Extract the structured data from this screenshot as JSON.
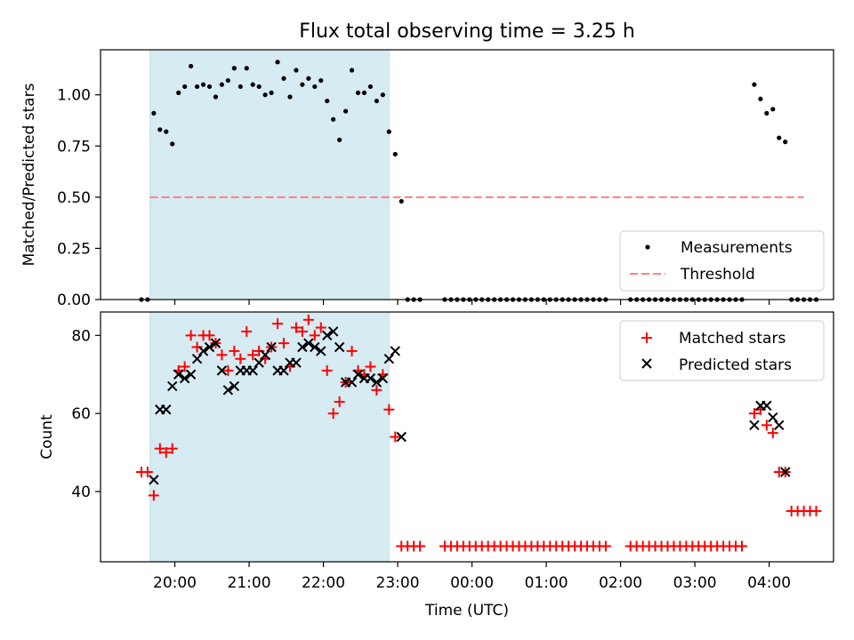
{
  "figure": {
    "title": "Flux total observing time = 3.25 h",
    "xlabel": "Time (UTC)"
  },
  "chart_data": [
    {
      "type": "scatter",
      "ylabel": "Matched/Predicted stars",
      "ylim": [
        0,
        1.22
      ],
      "xlim": [
        "19:00",
        "04:52"
      ],
      "yticks": [
        0.0,
        0.25,
        0.5,
        0.75,
        1.0
      ],
      "ytick_labels": [
        "0.00",
        "0.25",
        "0.50",
        "0.75",
        "1.00"
      ],
      "shaded_span": [
        "19:40",
        "22:53"
      ],
      "legend": {
        "placement": "lower-right",
        "entries": [
          "Measurements",
          "Threshold"
        ]
      },
      "threshold": {
        "name": "Threshold",
        "value": 0.5,
        "x_range": [
          "19:40",
          "04:28"
        ],
        "color": "#ff7f7f",
        "style": "dashed"
      },
      "series": [
        {
          "name": "Measurements",
          "marker": "dot",
          "color": "#000000",
          "points": [
            [
              "19:33",
              0.0
            ],
            [
              "19:38",
              0.0
            ],
            [
              "19:43",
              0.91
            ],
            [
              "19:48",
              0.83
            ],
            [
              "19:53",
              0.82
            ],
            [
              "19:58",
              0.76
            ],
            [
              "20:03",
              1.01
            ],
            [
              "20:08",
              1.04
            ],
            [
              "20:13",
              1.14
            ],
            [
              "20:18",
              1.04
            ],
            [
              "20:23",
              1.05
            ],
            [
              "20:28",
              1.04
            ],
            [
              "20:33",
              0.99
            ],
            [
              "20:38",
              1.05
            ],
            [
              "20:43",
              1.07
            ],
            [
              "20:48",
              1.13
            ],
            [
              "20:53",
              1.04
            ],
            [
              "20:58",
              1.13
            ],
            [
              "21:03",
              1.05
            ],
            [
              "21:08",
              1.04
            ],
            [
              "21:13",
              1.0
            ],
            [
              "21:18",
              1.01
            ],
            [
              "21:23",
              1.16
            ],
            [
              "21:28",
              1.08
            ],
            [
              "21:33",
              0.99
            ],
            [
              "21:38",
              1.12
            ],
            [
              "21:43",
              1.05
            ],
            [
              "21:48",
              1.08
            ],
            [
              "21:53",
              1.04
            ],
            [
              "21:58",
              1.07
            ],
            [
              "22:03",
              0.97
            ],
            [
              "22:08",
              0.88
            ],
            [
              "22:13",
              0.78
            ],
            [
              "22:18",
              0.92
            ],
            [
              "22:23",
              1.12
            ],
            [
              "22:28",
              1.01
            ],
            [
              "22:33",
              1.01
            ],
            [
              "22:38",
              1.04
            ],
            [
              "22:43",
              0.97
            ],
            [
              "22:48",
              1.0
            ],
            [
              "22:53",
              0.82
            ],
            [
              "22:58",
              0.71
            ],
            [
              "23:03",
              0.48
            ],
            [
              "23:08",
              0.0
            ],
            [
              "23:13",
              0.0
            ],
            [
              "23:18",
              0.0
            ],
            [
              "23:38",
              0.0
            ],
            [
              "23:43",
              0.0
            ],
            [
              "23:48",
              0.0
            ],
            [
              "23:53",
              0.0
            ],
            [
              "23:58",
              0.0
            ],
            [
              "00:03",
              0.0
            ],
            [
              "00:08",
              0.0
            ],
            [
              "00:13",
              0.0
            ],
            [
              "00:18",
              0.0
            ],
            [
              "00:23",
              0.0
            ],
            [
              "00:28",
              0.0
            ],
            [
              "00:33",
              0.0
            ],
            [
              "00:38",
              0.0
            ],
            [
              "00:43",
              0.0
            ],
            [
              "00:48",
              0.0
            ],
            [
              "00:53",
              0.0
            ],
            [
              "00:58",
              0.0
            ],
            [
              "01:03",
              0.0
            ],
            [
              "01:08",
              0.0
            ],
            [
              "01:13",
              0.0
            ],
            [
              "01:18",
              0.0
            ],
            [
              "01:23",
              0.0
            ],
            [
              "01:28",
              0.0
            ],
            [
              "01:33",
              0.0
            ],
            [
              "01:38",
              0.0
            ],
            [
              "01:43",
              0.0
            ],
            [
              "01:48",
              0.0
            ],
            [
              "02:08",
              0.0
            ],
            [
              "02:13",
              0.0
            ],
            [
              "02:18",
              0.0
            ],
            [
              "02:23",
              0.0
            ],
            [
              "02:28",
              0.0
            ],
            [
              "02:33",
              0.0
            ],
            [
              "02:38",
              0.0
            ],
            [
              "02:43",
              0.0
            ],
            [
              "02:48",
              0.0
            ],
            [
              "02:53",
              0.0
            ],
            [
              "02:58",
              0.0
            ],
            [
              "03:03",
              0.0
            ],
            [
              "03:08",
              0.0
            ],
            [
              "03:13",
              0.0
            ],
            [
              "03:18",
              0.0
            ],
            [
              "03:23",
              0.0
            ],
            [
              "03:28",
              0.0
            ],
            [
              "03:33",
              0.0
            ],
            [
              "03:38",
              0.0
            ],
            [
              "03:48",
              1.05
            ],
            [
              "03:53",
              0.98
            ],
            [
              "03:58",
              0.91
            ],
            [
              "04:03",
              0.93
            ],
            [
              "04:08",
              0.79
            ],
            [
              "04:13",
              0.77
            ],
            [
              "04:18",
              0.0
            ],
            [
              "04:23",
              0.0
            ],
            [
              "04:28",
              0.0
            ],
            [
              "04:33",
              0.0
            ],
            [
              "04:38",
              0.0
            ]
          ]
        }
      ]
    },
    {
      "type": "scatter",
      "ylabel": "Count",
      "xlabel": "Time (UTC)",
      "xlim": [
        "19:00",
        "04:52"
      ],
      "ylim": [
        22,
        86
      ],
      "yticks": [
        40,
        60,
        80
      ],
      "xticks": [
        "20:00",
        "21:00",
        "22:00",
        "23:00",
        "00:00",
        "01:00",
        "02:00",
        "03:00",
        "04:00"
      ],
      "shaded_span": [
        "19:40",
        "22:53"
      ],
      "legend": {
        "placement": "top-right",
        "entries": [
          "Matched stars",
          "Predicted stars"
        ]
      },
      "series": [
        {
          "name": "Matched stars",
          "marker": "plus",
          "color": "#ff0000",
          "points": [
            [
              "19:33",
              45
            ],
            [
              "19:38",
              45
            ],
            [
              "19:43",
              39
            ],
            [
              "19:48",
              51
            ],
            [
              "19:53",
              50
            ],
            [
              "19:58",
              51
            ],
            [
              "20:03",
              71
            ],
            [
              "20:08",
              72
            ],
            [
              "20:13",
              80
            ],
            [
              "20:18",
              77
            ],
            [
              "20:23",
              80
            ],
            [
              "20:28",
              80
            ],
            [
              "20:33",
              78
            ],
            [
              "20:38",
              75
            ],
            [
              "20:43",
              71
            ],
            [
              "20:48",
              76
            ],
            [
              "20:53",
              74
            ],
            [
              "20:58",
              81
            ],
            [
              "21:03",
              75
            ],
            [
              "21:08",
              76
            ],
            [
              "21:13",
              74
            ],
            [
              "21:18",
              77
            ],
            [
              "21:23",
              83
            ],
            [
              "21:28",
              78
            ],
            [
              "21:33",
              72
            ],
            [
              "21:38",
              82
            ],
            [
              "21:43",
              81
            ],
            [
              "21:48",
              84
            ],
            [
              "21:53",
              80
            ],
            [
              "21:58",
              82
            ],
            [
              "22:03",
              71
            ],
            [
              "22:08",
              60
            ],
            [
              "22:13",
              63
            ],
            [
              "22:18",
              68
            ],
            [
              "22:23",
              76
            ],
            [
              "22:28",
              71
            ],
            [
              "22:33",
              70
            ],
            [
              "22:38",
              72
            ],
            [
              "22:43",
              66
            ],
            [
              "22:48",
              70
            ],
            [
              "22:53",
              61
            ],
            [
              "22:58",
              54
            ],
            [
              "23:03",
              26
            ],
            [
              "23:08",
              26
            ],
            [
              "23:13",
              26
            ],
            [
              "23:18",
              26
            ],
            [
              "23:38",
              26
            ],
            [
              "23:43",
              26
            ],
            [
              "23:48",
              26
            ],
            [
              "23:53",
              26
            ],
            [
              "23:58",
              26
            ],
            [
              "00:03",
              26
            ],
            [
              "00:08",
              26
            ],
            [
              "00:13",
              26
            ],
            [
              "00:18",
              26
            ],
            [
              "00:23",
              26
            ],
            [
              "00:28",
              26
            ],
            [
              "00:33",
              26
            ],
            [
              "00:38",
              26
            ],
            [
              "00:43",
              26
            ],
            [
              "00:48",
              26
            ],
            [
              "00:53",
              26
            ],
            [
              "00:58",
              26
            ],
            [
              "01:03",
              26
            ],
            [
              "01:08",
              26
            ],
            [
              "01:13",
              26
            ],
            [
              "01:18",
              26
            ],
            [
              "01:23",
              26
            ],
            [
              "01:28",
              26
            ],
            [
              "01:33",
              26
            ],
            [
              "01:38",
              26
            ],
            [
              "01:43",
              26
            ],
            [
              "01:48",
              26
            ],
            [
              "02:08",
              26
            ],
            [
              "02:13",
              26
            ],
            [
              "02:18",
              26
            ],
            [
              "02:23",
              26
            ],
            [
              "02:28",
              26
            ],
            [
              "02:33",
              26
            ],
            [
              "02:38",
              26
            ],
            [
              "02:43",
              26
            ],
            [
              "02:48",
              26
            ],
            [
              "02:53",
              26
            ],
            [
              "02:58",
              26
            ],
            [
              "03:03",
              26
            ],
            [
              "03:08",
              26
            ],
            [
              "03:13",
              26
            ],
            [
              "03:18",
              26
            ],
            [
              "03:23",
              26
            ],
            [
              "03:28",
              26
            ],
            [
              "03:33",
              26
            ],
            [
              "03:38",
              26
            ],
            [
              "03:48",
              60
            ],
            [
              "03:53",
              61
            ],
            [
              "03:58",
              57
            ],
            [
              "04:03",
              55
            ],
            [
              "04:08",
              45
            ],
            [
              "04:13",
              45
            ],
            [
              "04:18",
              35
            ],
            [
              "04:23",
              35
            ],
            [
              "04:28",
              35
            ],
            [
              "04:33",
              35
            ],
            [
              "04:38",
              35
            ]
          ]
        },
        {
          "name": "Predicted stars",
          "marker": "x",
          "color": "#000000",
          "points": [
            [
              "19:43",
              43
            ],
            [
              "19:48",
              61
            ],
            [
              "19:53",
              61
            ],
            [
              "19:58",
              67
            ],
            [
              "20:03",
              70
            ],
            [
              "20:08",
              69
            ],
            [
              "20:13",
              70
            ],
            [
              "20:18",
              74
            ],
            [
              "20:23",
              76
            ],
            [
              "20:28",
              77
            ],
            [
              "20:33",
              78
            ],
            [
              "20:38",
              71
            ],
            [
              "20:43",
              66
            ],
            [
              "20:48",
              67
            ],
            [
              "20:53",
              71
            ],
            [
              "20:58",
              71
            ],
            [
              "21:03",
              71
            ],
            [
              "21:08",
              73
            ],
            [
              "21:13",
              75
            ],
            [
              "21:18",
              77
            ],
            [
              "21:23",
              71
            ],
            [
              "21:28",
              71
            ],
            [
              "21:33",
              73
            ],
            [
              "21:38",
              73
            ],
            [
              "21:43",
              77
            ],
            [
              "21:48",
              78
            ],
            [
              "21:53",
              77
            ],
            [
              "21:58",
              76
            ],
            [
              "22:03",
              80
            ],
            [
              "22:08",
              81
            ],
            [
              "22:13",
              77
            ],
            [
              "22:18",
              68
            ],
            [
              "22:23",
              68
            ],
            [
              "22:28",
              70
            ],
            [
              "22:33",
              69
            ],
            [
              "22:38",
              69
            ],
            [
              "22:43",
              68
            ],
            [
              "22:48",
              69
            ],
            [
              "22:53",
              74
            ],
            [
              "22:58",
              76
            ],
            [
              "23:03",
              54
            ],
            [
              "03:48",
              57
            ],
            [
              "03:53",
              62
            ],
            [
              "03:58",
              62
            ],
            [
              "04:03",
              59
            ],
            [
              "04:08",
              57
            ],
            [
              "04:13",
              45
            ]
          ]
        }
      ]
    }
  ]
}
